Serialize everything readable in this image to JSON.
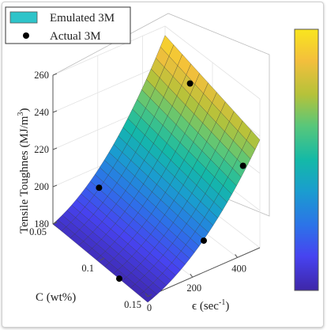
{
  "chart_data": {
    "type": "surface",
    "zlabel": "Tensile Toughnes (MJ/m",
    "zlabel_sup": "3",
    "zlabel_close": ")",
    "xlabel": "C (wt%)",
    "ylabel": "ϵ (sec",
    "ylabel_sup": "-1",
    "ylabel_close": ")",
    "z_ticks": [
      "180",
      "200",
      "220",
      "240",
      "260"
    ],
    "x_ticks": [
      "0.05",
      "0.1",
      "0.15"
    ],
    "y_ticks": [
      "0",
      "200",
      "400"
    ],
    "xlim": [
      0.05,
      0.15
    ],
    "ylim": [
      0,
      500
    ],
    "zlim": [
      180,
      260
    ],
    "legend": {
      "position": "top-left",
      "entries": [
        {
          "label": "Emulated 3M",
          "kind": "patch",
          "color": "#2ec4c9"
        },
        {
          "label": "Actual 3M",
          "kind": "marker",
          "color": "#000000"
        }
      ]
    },
    "colorbar": {
      "position": "right",
      "colors": [
        "#3e26a8",
        "#4743f0",
        "#2c73e8",
        "#1a9dcf",
        "#14b9a7",
        "#58c77a",
        "#b5c23a",
        "#f3bf3c",
        "#f9e51e"
      ]
    },
    "surface_corners": [
      {
        "C": 0.05,
        "eps": 0,
        "z": 180
      },
      {
        "C": 0.05,
        "eps": 500,
        "z": 255
      },
      {
        "C": 0.15,
        "eps": 500,
        "z": 238
      },
      {
        "C": 0.15,
        "eps": 0,
        "z": 177
      }
    ],
    "actual_points": [
      {
        "C": 0.12,
        "eps": 0,
        "z": 178
      },
      {
        "C": 0.075,
        "eps": 100,
        "z": 204
      },
      {
        "C": 0.15,
        "eps": 250,
        "z": 197
      },
      {
        "C": 0.1,
        "eps": 400,
        "z": 254
      },
      {
        "C": 0.15,
        "eps": 425,
        "z": 228
      }
    ]
  }
}
